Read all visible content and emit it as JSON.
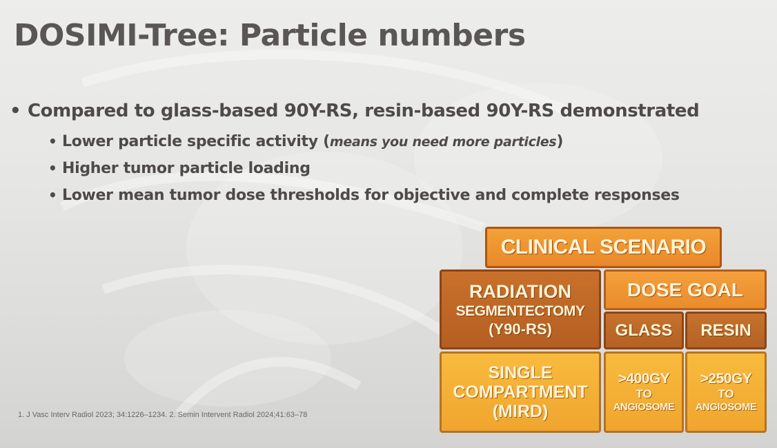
{
  "title": "DOSIMI-Tree: Particle numbers",
  "main_bullet": "Compared to glass-based 90Y-RS, resin-based 90Y-RS demonstrated",
  "sub_bullets": {
    "b1_text": "Lower particle specific activity (",
    "b1_note": "means you need more particles",
    "b1_close": ")",
    "b2_text": "Higher tumor particle loading",
    "b3_text": "Lower mean tumor dose thresholds for objective and complete responses"
  },
  "footnote": "1. J Vasc Interv Radiol 2023; 34:1226–1234. 2. Semin Intervent Radiol 2024;41:63–78",
  "tree": {
    "clinical_scenario": "CLINICAL SCENARIO",
    "radiation_line1": "RADIATION",
    "radiation_line2": "SEGMENTECTOMY",
    "radiation_line3": "(Y90-RS)",
    "dose_goal": "DOSE GOAL",
    "glass": "GLASS",
    "resin": "RESIN",
    "single_line1": "SINGLE",
    "single_line2": "COMPARTMENT",
    "single_line3": "(MIRD)",
    "glass_dose": ">400Gy",
    "glass_to": "TO",
    "glass_target": "ANGIOSOME",
    "resin_dose": ">250Gy",
    "resin_to": "TO",
    "resin_target": "ANGIOSOME"
  },
  "colors": {
    "title": "#5a5656",
    "text": "#4e4a4a",
    "orange_light": "#f0a52e",
    "orange_mid": "#e98c2c",
    "orange_dark": "#b45e22"
  }
}
